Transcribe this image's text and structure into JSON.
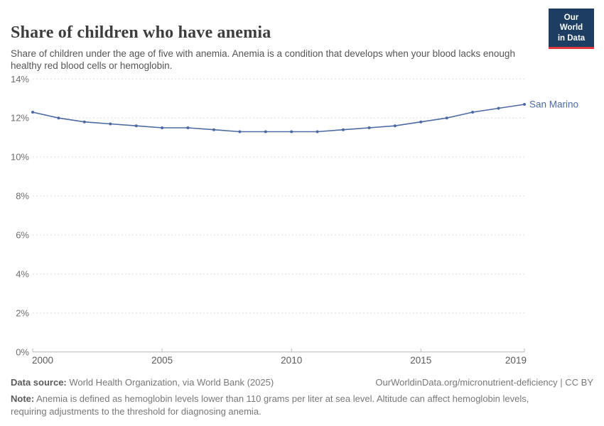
{
  "header": {
    "title": "Share of children who have anemia",
    "subtitle": "Share of children under the age of five with anemia. Anemia is a condition that develops when your blood lacks enough healthy red blood cells or hemoglobin."
  },
  "logo": {
    "line1": "Our World",
    "line2": "in Data",
    "bg_color": "#1d3d63",
    "stripe_color": "#e0373f"
  },
  "chart_data": {
    "type": "line",
    "title": "Share of children who have anemia",
    "x": [
      2000,
      2001,
      2002,
      2003,
      2004,
      2005,
      2006,
      2007,
      2008,
      2009,
      2010,
      2011,
      2012,
      2013,
      2014,
      2015,
      2016,
      2017,
      2018,
      2019
    ],
    "series": [
      {
        "name": "San Marino",
        "color": "#4c6aa2",
        "values": [
          12.3,
          12.0,
          11.8,
          11.7,
          11.6,
          11.5,
          11.5,
          11.4,
          11.3,
          11.3,
          11.3,
          11.3,
          11.4,
          11.5,
          11.6,
          11.8,
          12.0,
          12.3,
          12.5,
          12.7
        ]
      }
    ],
    "xlabel": "",
    "ylabel": "",
    "ylim": [
      0,
      14
    ],
    "y_ticks": [
      0,
      2,
      4,
      6,
      8,
      10,
      12,
      14
    ],
    "y_tick_suffix": "%",
    "x_ticks": [
      2000,
      2005,
      2010,
      2015,
      2019
    ],
    "grid": "horizontal-dashed",
    "legend": "end-of-line label",
    "gridline_color": "#dedede",
    "axis_color": "#b9b9b9"
  },
  "footer": {
    "source_label": "Data source:",
    "source_text": " World Health Organization, via World Bank (2025)",
    "link": "OurWorldinData.org/micronutrient-deficiency | CC BY",
    "note_label": "Note:",
    "note_text": " Anemia is defined as hemoglobin levels lower than 110 grams per liter at sea level. Altitude can affect hemoglobin levels, requiring adjustments to the threshold for diagnosing anemia."
  }
}
